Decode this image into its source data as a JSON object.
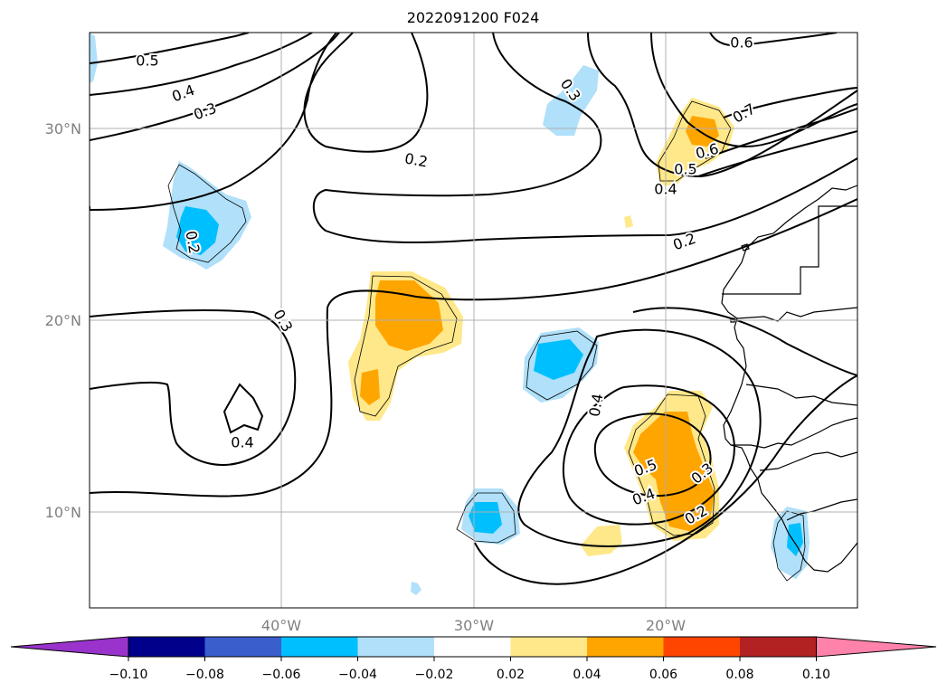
{
  "title": "2022091200 F024",
  "lat_labels": [
    "30°N",
    "20°N",
    "10°N"
  ],
  "lon_labels": [
    "40°W",
    "30°W",
    "20°W"
  ],
  "colorbar": {
    "ticks": [
      "−0.10",
      "−0.08",
      "−0.06",
      "−0.04",
      "−0.02",
      "0.02",
      "0.04",
      "0.06",
      "0.08",
      "0.10"
    ],
    "colors": [
      "#9933cc",
      "#00008b",
      "#3a5fcd",
      "#00bfff",
      "#b0e0fa",
      "#ffffff",
      "#ffe88a",
      "#ffa500",
      "#ff4500",
      "#b22222",
      "#ff82ab"
    ]
  },
  "contour_labels": [
    "0.6",
    "0.5",
    "0.4",
    "0.3",
    "0.3",
    "0.7",
    "0.6",
    "0.5",
    "0.4",
    "0.2",
    "0.2",
    "0.2",
    "0.3",
    "0.4",
    "0.4",
    "0.5",
    "0.4",
    "0.3",
    "0.2"
  ],
  "fill_colors": {
    "pos1": "#ffe88a",
    "pos2": "#ffa500",
    "neg1": "#b0e0fa",
    "neg2": "#00bfff"
  }
}
